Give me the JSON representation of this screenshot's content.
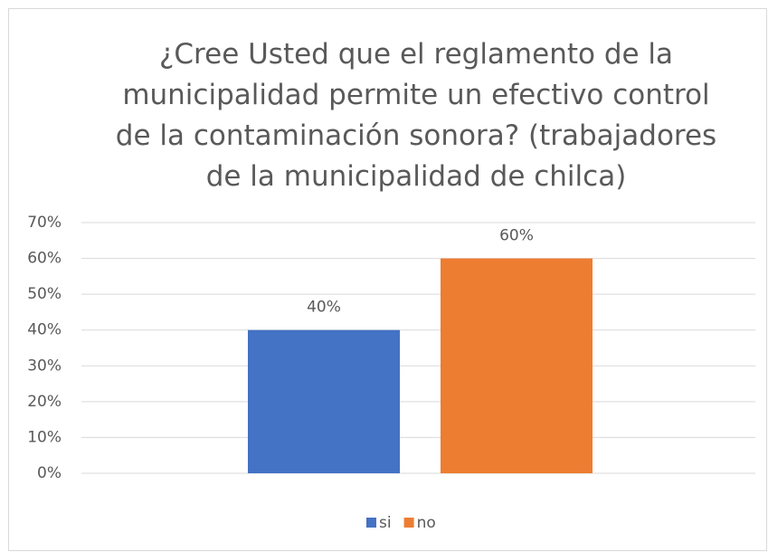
{
  "chart_data": {
    "type": "bar",
    "title": "¿Cree Usted que el reglamento de la municipalidad permite un efectivo control de la contaminación sonora? (trabajadores de la municipalidad de chilca)",
    "categories": [
      null
    ],
    "series": [
      {
        "name": "si",
        "color": "#4472c4",
        "values": [
          40
        ],
        "value_labels": [
          "40%"
        ]
      },
      {
        "name": "no",
        "color": "#ed7d31",
        "values": [
          60
        ],
        "value_labels": [
          "60%"
        ]
      }
    ],
    "ylim": [
      0,
      70
    ],
    "yticks": [
      {
        "value": 0,
        "label": "0%"
      },
      {
        "value": 10,
        "label": "10%"
      },
      {
        "value": 20,
        "label": "20%"
      },
      {
        "value": 30,
        "label": "30%"
      },
      {
        "value": 40,
        "label": "40%"
      },
      {
        "value": 50,
        "label": "50%"
      },
      {
        "value": 60,
        "label": "60%"
      },
      {
        "value": 70,
        "label": "70%"
      }
    ],
    "grid": true,
    "legend": "bottom"
  }
}
